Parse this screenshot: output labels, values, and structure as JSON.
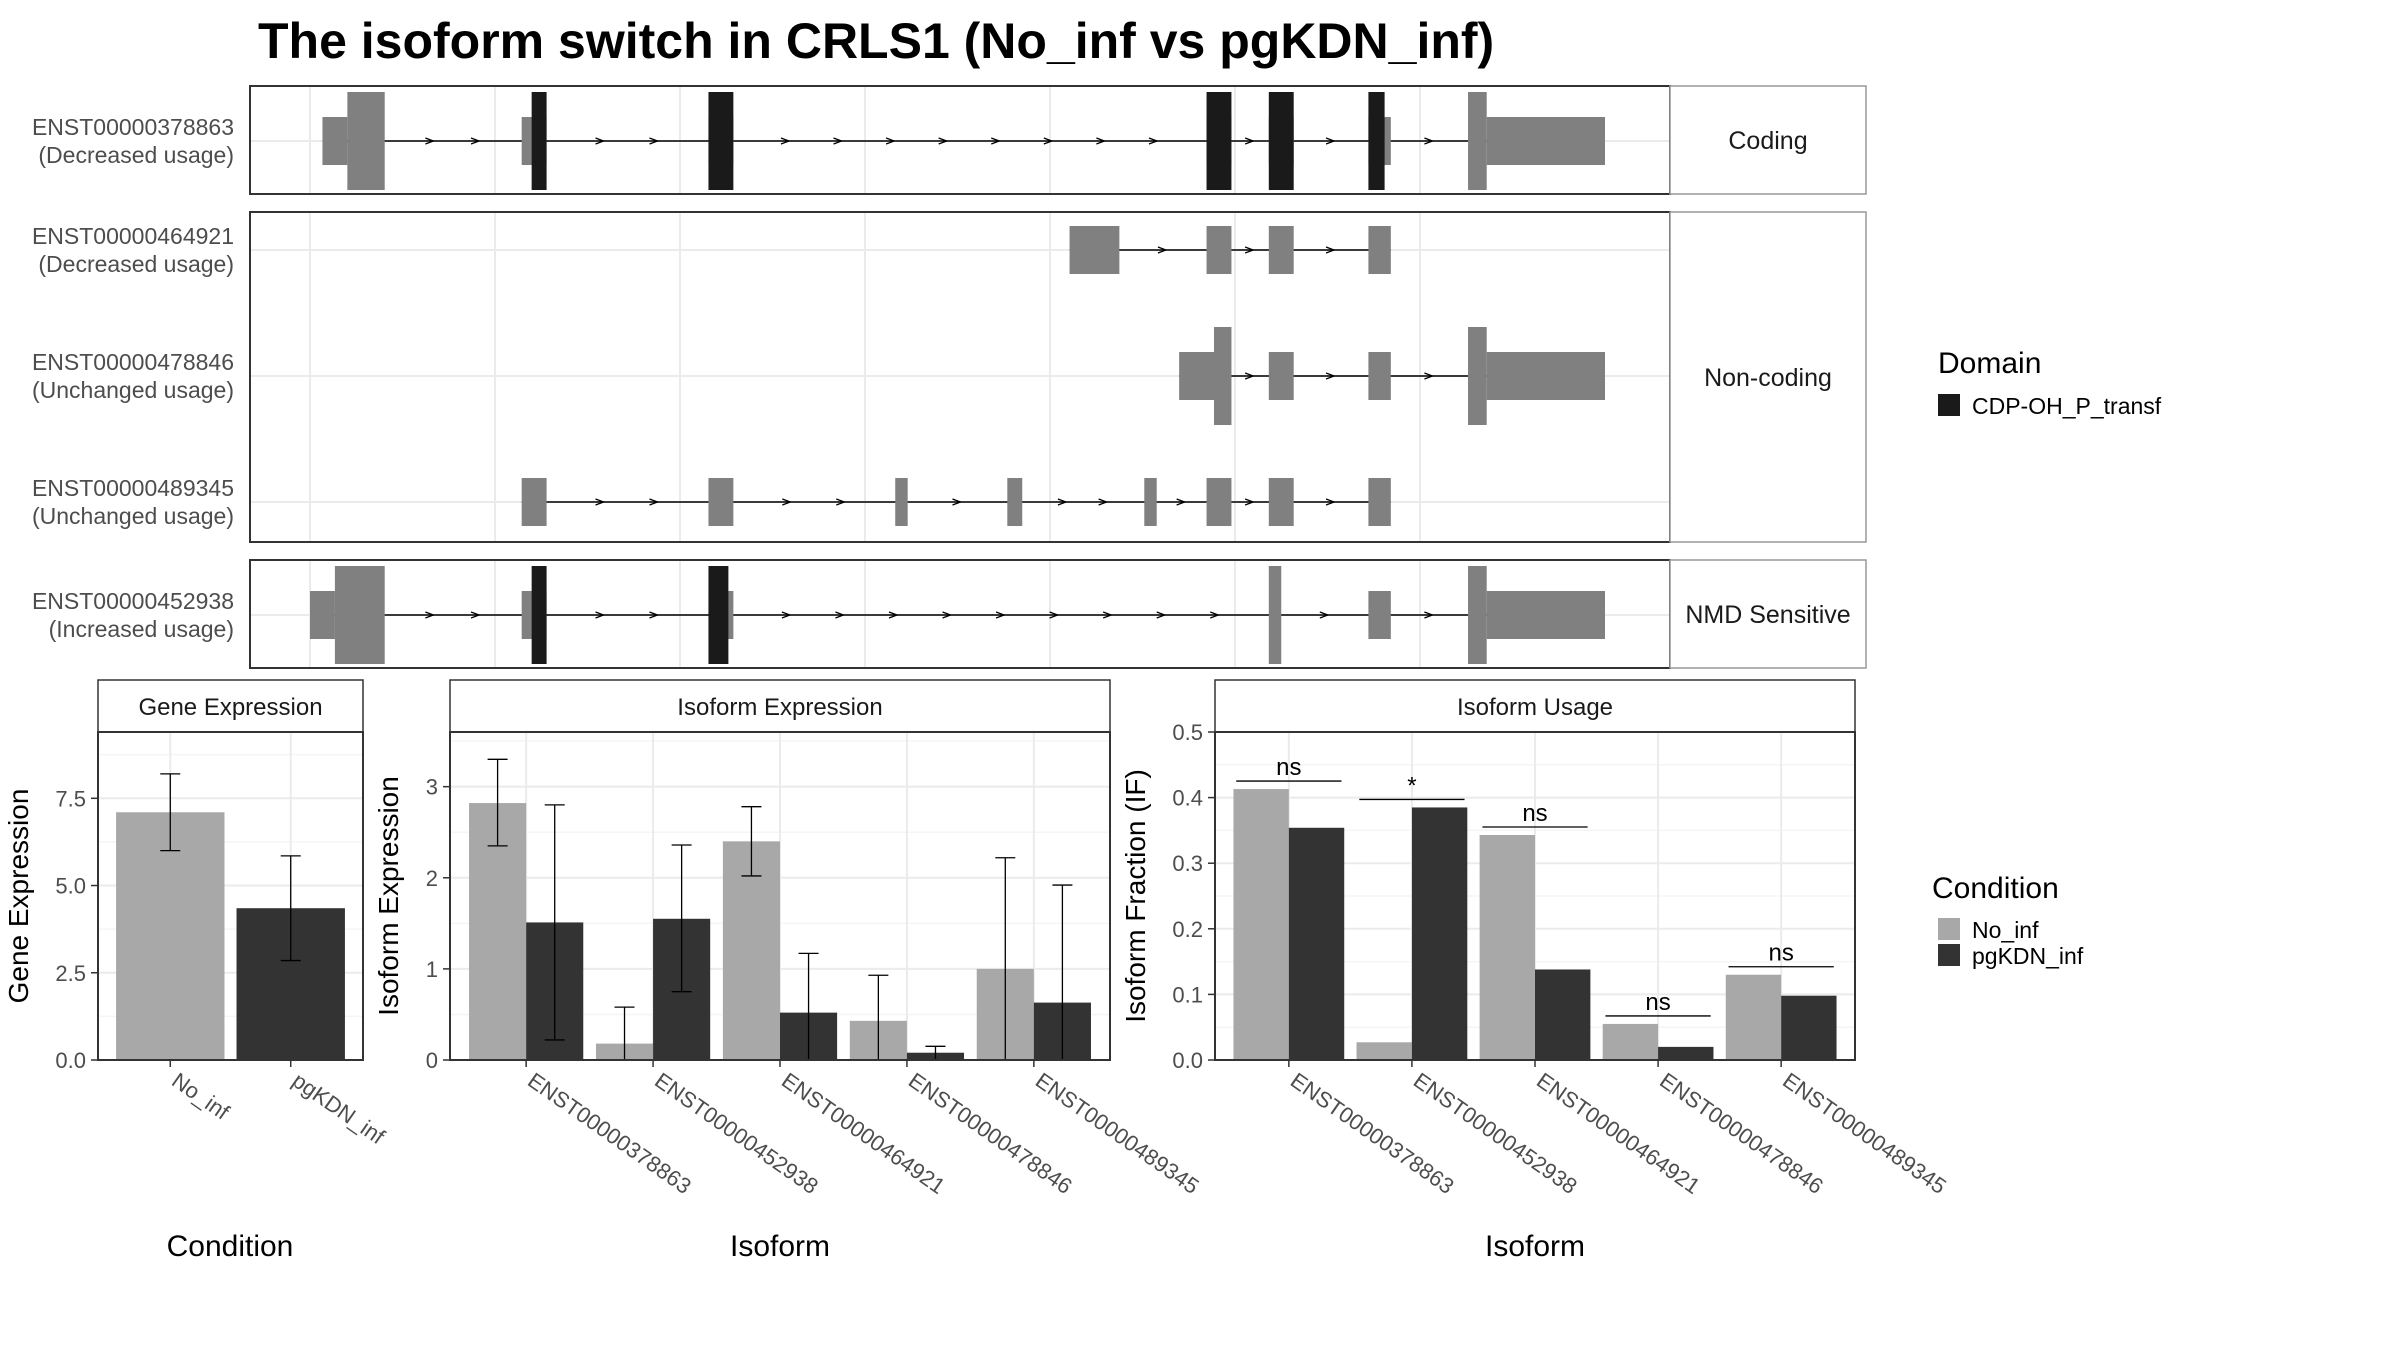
{
  "title": "The isoform switch in CRLS1 (No_inf vs pgKDN_inf)",
  "colors": {
    "no_inf": "#a8a8a8",
    "pgkdn_inf": "#333333",
    "exon": "#808080",
    "domain": "#1a1a1a",
    "strip_bg": "#ffffff",
    "grid": "#ebebeb"
  },
  "structure": {
    "genome_range": [
      0,
      1000
    ],
    "panels": [
      {
        "strip": "Coding",
        "tracks": [
          {
            "id": "ENST00000378863",
            "note": "(Decreased usage)",
            "exons": [
              [
                10,
                60
              ],
              [
                170,
                190
              ],
              [
                320,
                340
              ],
              [
                720,
                740
              ],
              [
                770,
                790
              ],
              [
                850,
                868
              ],
              [
                930,
                1040
              ]
            ],
            "utr_end": 22,
            "cds_end": 1040,
            "utr3_start": 945,
            "domains": [
              [
                178,
                190
              ],
              [
                320,
                340
              ],
              [
                720,
                740
              ],
              [
                770,
                790
              ],
              [
                850,
                863
              ]
            ]
          }
        ]
      },
      {
        "strip": "Non-coding",
        "tracks": [
          {
            "id": "ENST00000464921",
            "note": "(Decreased usage)",
            "exons": [
              [
                610,
                650
              ],
              [
                720,
                740
              ],
              [
                770,
                790
              ],
              [
                850,
                868
              ]
            ],
            "domains": []
          },
          {
            "id": "ENST00000478846",
            "note": "(Unchanged usage)",
            "exons": [
              [
                698,
                740
              ],
              [
                770,
                790
              ],
              [
                850,
                868
              ],
              [
                930,
                1040
              ]
            ],
            "domains": []
          },
          {
            "id": "ENST00000489345",
            "note": "(Unchanged usage)",
            "exons": [
              [
                170,
                190
              ],
              [
                320,
                340
              ],
              [
                470,
                480
              ],
              [
                560,
                572
              ],
              [
                670,
                680
              ],
              [
                720,
                740
              ],
              [
                770,
                790
              ],
              [
                850,
                868
              ]
            ],
            "domains": []
          }
        ]
      },
      {
        "strip": "NMD Sensitive",
        "tracks": [
          {
            "id": "ENST00000452938",
            "note": "(Increased usage)",
            "exons": [
              [
                0,
                60
              ],
              [
                170,
                190
              ],
              [
                320,
                340
              ],
              [
                770,
                780
              ],
              [
                850,
                868
              ],
              [
                930,
                1040
              ]
            ],
            "domains": [
              [
                178,
                190
              ],
              [
                320,
                336
              ]
            ]
          }
        ]
      }
    ]
  },
  "legend_domain": {
    "title": "Domain",
    "entries": [
      "CDP-OH_P_transf"
    ]
  },
  "legend_condition": {
    "title": "Condition",
    "entries": [
      "No_inf",
      "pgKDN_inf"
    ]
  },
  "chart_data": [
    {
      "type": "bar",
      "title": "Gene Expression",
      "xlabel": "Condition",
      "ylabel": "Gene Expression",
      "categories": [
        "No_inf",
        "pgKDN_inf"
      ],
      "values": [
        7.1,
        4.35
      ],
      "error_low": [
        6.0,
        2.85
      ],
      "error_high": [
        8.2,
        5.85
      ],
      "ylim": [
        0,
        9.4
      ],
      "yticks": [
        "0.0",
        "2.5",
        "5.0",
        "7.5"
      ]
    },
    {
      "type": "bar",
      "title": "Isoform Expression",
      "xlabel": "Isoform",
      "ylabel": "Isoform Expression",
      "categories": [
        "ENST00000378863",
        "ENST00000452938",
        "ENST00000464921",
        "ENST00000478846",
        "ENST00000489345"
      ],
      "series": [
        {
          "name": "No_inf",
          "values": [
            2.82,
            0.18,
            2.4,
            0.43,
            1.0
          ],
          "error_low": [
            2.35,
            0.0,
            2.02,
            0.0,
            0.0
          ],
          "error_high": [
            3.3,
            0.58,
            2.78,
            0.93,
            2.22
          ]
        },
        {
          "name": "pgKDN_inf",
          "values": [
            1.51,
            1.55,
            0.52,
            0.08,
            0.63
          ],
          "error_low": [
            0.22,
            0.75,
            0.0,
            0.0,
            0.0
          ],
          "error_high": [
            2.8,
            2.36,
            1.17,
            0.15,
            1.92
          ]
        }
      ],
      "ylim": [
        0,
        3.6
      ],
      "yticks": [
        "0",
        "1",
        "2",
        "3"
      ]
    },
    {
      "type": "bar",
      "title": "Isoform Usage",
      "xlabel": "Isoform",
      "ylabel": "Isoform Fraction (IF)",
      "categories": [
        "ENST00000378863",
        "ENST00000452938",
        "ENST00000464921",
        "ENST00000478846",
        "ENST00000489345"
      ],
      "series": [
        {
          "name": "No_inf",
          "values": [
            0.413,
            0.027,
            0.343,
            0.055,
            0.13
          ]
        },
        {
          "name": "pgKDN_inf",
          "values": [
            0.354,
            0.385,
            0.138,
            0.02,
            0.098
          ]
        }
      ],
      "significance": [
        "ns",
        "*",
        "ns",
        "ns",
        "ns"
      ],
      "ylim": [
        0,
        0.5
      ],
      "yticks": [
        "0.0",
        "0.1",
        "0.2",
        "0.3",
        "0.4",
        "0.5"
      ]
    }
  ]
}
